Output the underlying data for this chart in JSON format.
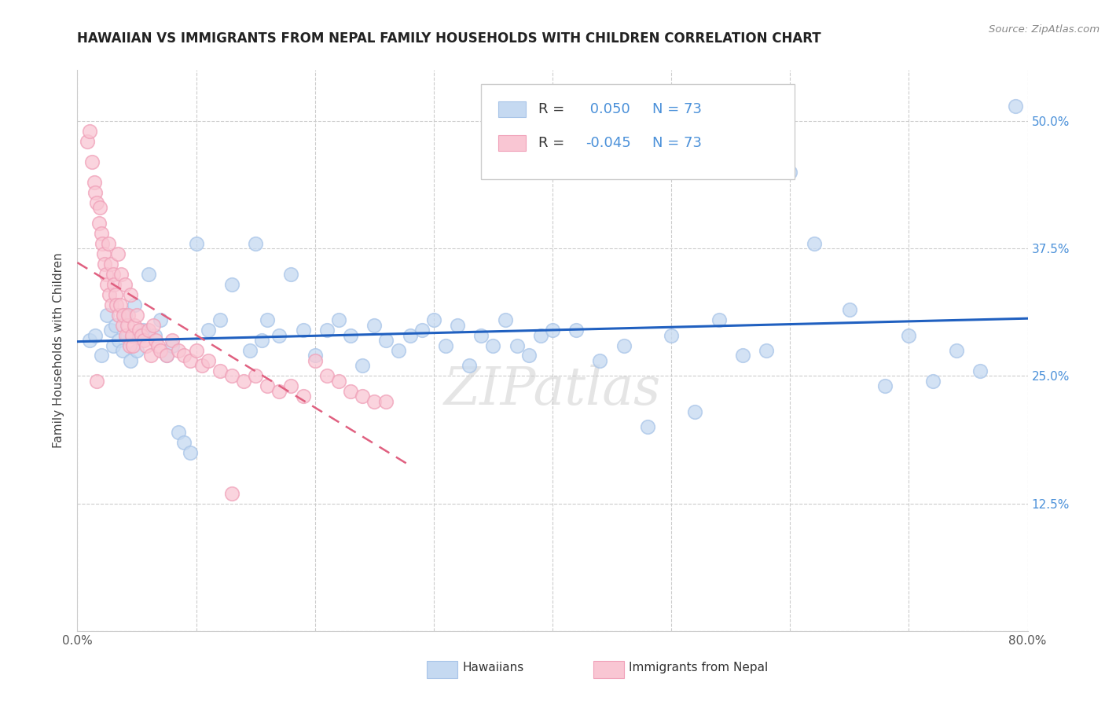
{
  "title": "HAWAIIAN VS IMMIGRANTS FROM NEPAL FAMILY HOUSEHOLDS WITH CHILDREN CORRELATION CHART",
  "source": "Source: ZipAtlas.com",
  "ylabel": "Family Households with Children",
  "xlim": [
    0.0,
    0.8
  ],
  "ylim": [
    0.0,
    0.55
  ],
  "x_tick_positions": [
    0.0,
    0.1,
    0.2,
    0.3,
    0.4,
    0.5,
    0.6,
    0.7,
    0.8
  ],
  "x_tick_labels": [
    "0.0%",
    "",
    "",
    "",
    "",
    "",
    "",
    "",
    "80.0%"
  ],
  "y_tick_positions": [
    0.0,
    0.125,
    0.25,
    0.375,
    0.5
  ],
  "y_tick_labels_left": [
    "",
    "",
    "",
    "",
    ""
  ],
  "y_tick_labels_right": [
    "",
    "12.5%",
    "25.0%",
    "37.5%",
    "50.0%"
  ],
  "r_hawaiian": 0.05,
  "n_hawaiian": 73,
  "r_nepal": -0.045,
  "n_nepal": 73,
  "hawaiian_fill": "#c5d9f1",
  "hawaiian_edge": "#a8c4e8",
  "nepal_fill": "#f9c6d3",
  "nepal_edge": "#f0a0b8",
  "hawaiian_line_color": "#2060c0",
  "nepal_line_color": "#e06080",
  "watermark": "ZIPatlas",
  "background_color": "#ffffff",
  "grid_color": "#cccccc",
  "title_color": "#222222",
  "source_color": "#888888",
  "ylabel_color": "#444444",
  "tick_color_right": "#4a90d9",
  "legend_text_color_r": "#4a90d9",
  "legend_text_color_n": "#333333"
}
